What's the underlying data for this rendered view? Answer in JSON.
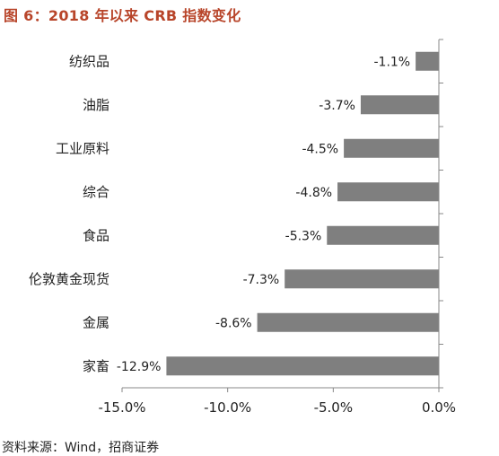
{
  "title": "图 6：2018 年以来 CRB 指数变化",
  "source": "资料来源：Wind，招商证券",
  "colors": {
    "title": "#b8452a",
    "bar": "#7f7f7f",
    "axis": "#888888"
  },
  "chart_data": {
    "type": "bar",
    "orientation": "horizontal",
    "title": "图 6：2018 年以来 CRB 指数变化",
    "xlabel": "",
    "ylabel": "",
    "categories": [
      "纺织品",
      "油脂",
      "工业原料",
      "综合",
      "食品",
      "伦敦黄金现货",
      "金属",
      "家畜"
    ],
    "values": [
      -1.1,
      -3.7,
      -4.5,
      -4.8,
      -5.3,
      -7.3,
      -8.6,
      -12.9
    ],
    "value_labels": [
      "-1.1%",
      "-3.7%",
      "-4.5%",
      "-4.8%",
      "-5.3%",
      "-7.3%",
      "-8.6%",
      "-12.9%"
    ],
    "xlim": [
      -15,
      0
    ],
    "xticks": [
      -15,
      -10,
      -5,
      0
    ],
    "xtick_labels": [
      "-15.0%",
      "-10.0%",
      "-5.0%",
      "0.0%"
    ],
    "grid": false,
    "legend": "none"
  }
}
